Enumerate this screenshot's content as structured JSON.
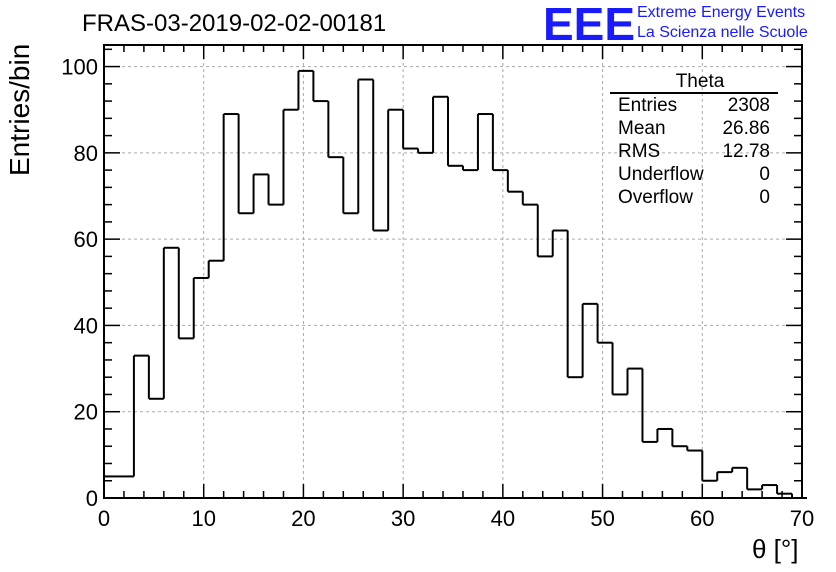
{
  "chart_data": {
    "type": "histogram",
    "title": "FRAS-03-2019-02-02-00181",
    "xlabel": "θ [°]",
    "ylabel": "Entries/bin",
    "xlim": [
      0,
      70
    ],
    "ylim": [
      0,
      105
    ],
    "grid": true,
    "x_ticks": [
      0,
      10,
      20,
      30,
      40,
      50,
      60,
      70
    ],
    "y_ticks": [
      0,
      20,
      40,
      60,
      80,
      100
    ],
    "bin_width": 1.5,
    "bin_start": 0,
    "values": [
      5,
      5,
      33,
      23,
      58,
      37,
      51,
      55,
      89,
      66,
      75,
      68,
      90,
      99,
      92,
      79,
      66,
      97,
      62,
      90,
      81,
      80,
      93,
      77,
      76,
      89,
      76,
      71,
      68,
      56,
      62,
      28,
      45,
      36,
      24,
      30,
      13,
      16,
      12,
      11,
      4,
      6,
      7,
      2,
      3,
      1,
      0
    ]
  },
  "stats_box": {
    "title": "Theta",
    "rows": [
      {
        "label": "Entries",
        "value": "2308"
      },
      {
        "label": "Mean",
        "value": "26.86"
      },
      {
        "label": "RMS",
        "value": "12.78"
      },
      {
        "label": "Underflow",
        "value": "0"
      },
      {
        "label": "Overflow",
        "value": "0"
      }
    ]
  },
  "logo": {
    "mark": "EEE",
    "line1": "Extreme Energy Events",
    "line2": "La Scienza nelle Scuole",
    "color": "#1a1aff"
  }
}
